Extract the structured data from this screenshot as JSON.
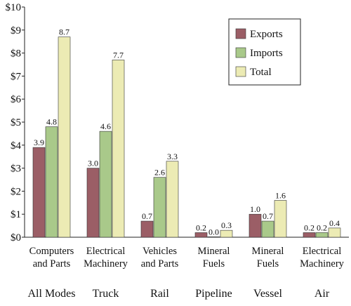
{
  "chart_data": {
    "type": "bar",
    "title": "",
    "xlabel": "",
    "ylabel": "",
    "ylim": [
      0,
      10
    ],
    "y_ticks": [
      "$0",
      "$1",
      "$2",
      "$3",
      "$4",
      "$5",
      "$6",
      "$7",
      "$8",
      "$9",
      "$10"
    ],
    "grid": false,
    "legend_placement": "top-right",
    "categories": [
      {
        "line1": "Computers",
        "line2": "and Parts",
        "mode": "All Modes"
      },
      {
        "line1": "Electrical",
        "line2": "Machinery",
        "mode": "Truck"
      },
      {
        "line1": "Vehicles",
        "line2": "and Parts",
        "mode": "Rail"
      },
      {
        "line1": "Mineral",
        "line2": "Fuels",
        "mode": "Pipeline"
      },
      {
        "line1": "Mineral",
        "line2": "Fuels",
        "mode": "Vessel"
      },
      {
        "line1": "Electrical",
        "line2": "Machinery",
        "mode": "Air"
      }
    ],
    "series": [
      {
        "name": "Exports",
        "color": "#9b5e66",
        "values": [
          3.9,
          3.0,
          0.7,
          0.2,
          1.0,
          0.2
        ],
        "labels": [
          "3.9",
          "3.0",
          "0.7",
          "0.2",
          "1.0",
          "0.2"
        ]
      },
      {
        "name": "Imports",
        "color": "#a9c98a",
        "values": [
          4.8,
          4.6,
          2.6,
          0.0,
          0.7,
          0.2
        ],
        "labels": [
          "4.8",
          "4.6",
          "2.6",
          "0.0",
          "0.7",
          "0.2"
        ]
      },
      {
        "name": "Total",
        "color": "#ecebb4",
        "values": [
          8.7,
          7.7,
          3.3,
          0.3,
          1.6,
          0.4
        ],
        "labels": [
          "8.7",
          "7.7",
          "3.3",
          "0.3",
          "1.6",
          "0.4"
        ]
      }
    ]
  }
}
